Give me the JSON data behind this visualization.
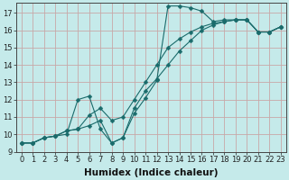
{
  "background_color": "#c5eaea",
  "grid_color": "#c8a8a8",
  "line_color": "#1a6b6b",
  "marker": "D",
  "marker_size": 2.5,
  "xlabel": "Humidex (Indice chaleur)",
  "xlabel_fontsize": 7.5,
  "tick_fontsize": 6,
  "xlim": [
    -0.5,
    23.5
  ],
  "ylim": [
    9.0,
    17.6
  ],
  "yticks": [
    9,
    10,
    11,
    12,
    13,
    14,
    15,
    16,
    17
  ],
  "xticks": [
    0,
    1,
    2,
    3,
    4,
    5,
    6,
    7,
    8,
    9,
    10,
    11,
    12,
    13,
    14,
    15,
    16,
    17,
    18,
    19,
    20,
    21,
    22,
    23
  ],
  "series": [
    [
      9.5,
      9.5,
      9.8,
      9.9,
      10.0,
      12.0,
      12.2,
      10.3,
      9.5,
      9.8,
      11.2,
      12.1,
      13.1,
      17.4,
      17.4,
      17.3,
      17.1,
      16.5,
      16.6,
      16.6,
      16.6,
      15.9,
      15.9,
      16.2
    ],
    [
      9.5,
      9.5,
      9.8,
      9.9,
      10.2,
      10.3,
      11.1,
      11.5,
      10.8,
      11.0,
      12.0,
      13.0,
      14.0,
      15.0,
      15.5,
      15.9,
      16.2,
      16.4,
      16.5,
      16.6,
      16.6,
      15.9,
      15.9,
      16.2
    ],
    [
      9.5,
      9.5,
      9.8,
      9.9,
      10.2,
      10.3,
      10.5,
      10.8,
      9.5,
      9.8,
      11.5,
      12.5,
      13.2,
      14.0,
      14.8,
      15.4,
      16.0,
      16.3,
      16.5,
      16.6,
      16.6,
      15.9,
      15.9,
      16.2
    ]
  ]
}
